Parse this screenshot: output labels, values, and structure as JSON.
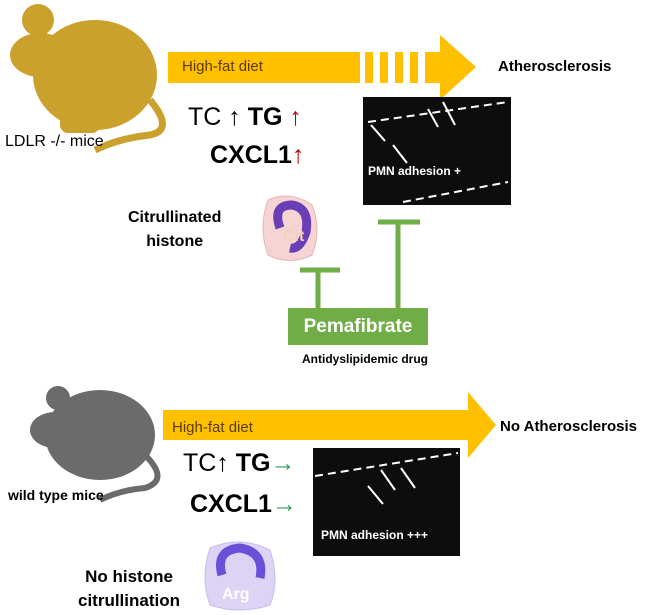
{
  "top": {
    "mouse_label": "LDLR -/- mice",
    "diet_label": "High-fat diet",
    "outcome": "Atherosclerosis",
    "tc": "TC",
    "tc_arrow": "↑",
    "tg": "TG",
    "tg_arrow": "↑",
    "cxcl1": "CXCL1",
    "cxcl1_arrow": "↑",
    "micro_caption": "PMN adhesion +",
    "cell_label": "Cit",
    "histone_line1": "Citrullinated",
    "histone_line2": "histone"
  },
  "drug": {
    "name": "Pemafibrate",
    "subtitle": "Antidyslipidemic drug"
  },
  "bottom": {
    "mouse_label": "wild type mice",
    "diet_label": "High-fat diet",
    "outcome": "No Atherosclerosis",
    "tc": "TC",
    "tc_arrow": "↑",
    "tg": "TG",
    "tg_arrow": "→",
    "cxcl1": "CXCL1",
    "cxcl1_arrow": "→",
    "micro_caption": "PMN adhesion +++",
    "cell_label": "Arg",
    "histone_line1": "No histone",
    "histone_line2": "citrullination"
  },
  "colors": {
    "diet_arrow": "#ffc000",
    "ldlr_mouse": "#c9a12c",
    "wt_mouse": "#6b6b6b",
    "increase_arrow": "#c00000",
    "unchanged_arrow": "#2e9e5b",
    "inhibition": "#70ad47"
  }
}
